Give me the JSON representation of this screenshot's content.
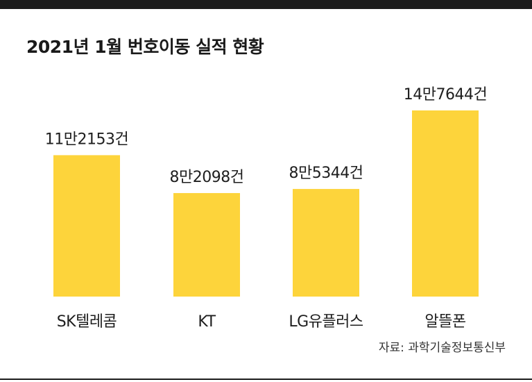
{
  "title": "2021년 1월 번호이동 실적 현황",
  "source": "자료: 과학기술정보통신부",
  "colors": {
    "bar": "#fdd43b",
    "rule": "#1c1c1c",
    "text": "#1e1e1e"
  },
  "chart_data": {
    "type": "bar",
    "title": "2021년 1월 번호이동 실적 현황",
    "xlabel": "",
    "ylabel": "",
    "categories": [
      "SK텔레콤",
      "KT",
      "LG유플러스",
      "알뜰폰"
    ],
    "values": [
      112153,
      82098,
      85344,
      147644
    ],
    "value_labels": [
      "11만2153건",
      "8만2098건",
      "8만5344건",
      "14만7644건"
    ],
    "ylim": [
      0,
      147644
    ],
    "grid": false,
    "legend": "none"
  }
}
